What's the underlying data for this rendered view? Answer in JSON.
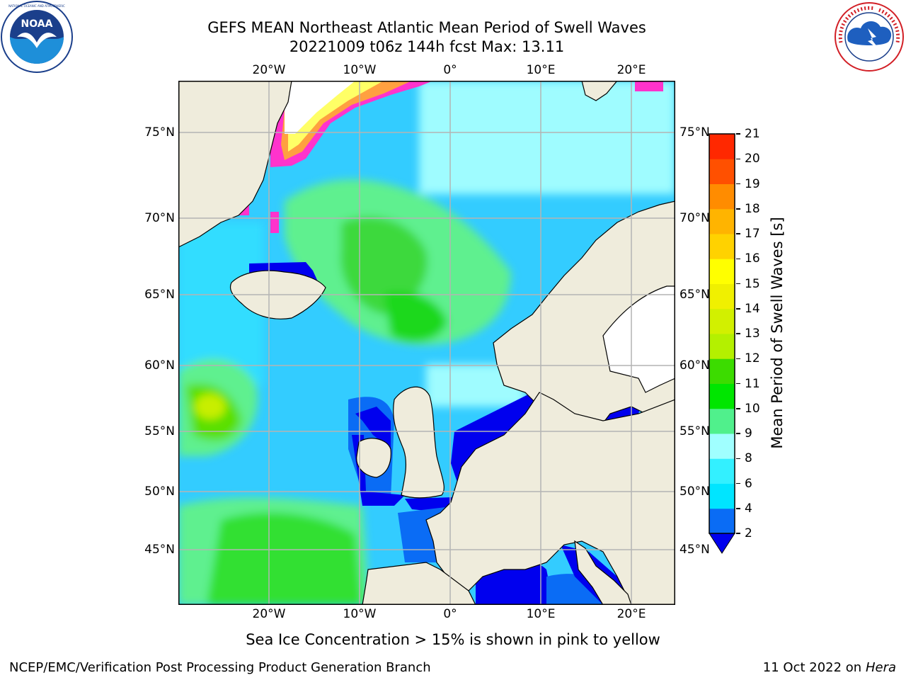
{
  "header": {
    "title_line1": "GEFS MEAN Northeast Atlantic Mean Period of Swell Waves",
    "title_line2": "20221009 t06z 144h fcst   Max: 13.11"
  },
  "logos": {
    "left": {
      "name": "noaa-logo",
      "text": "NOAA",
      "ring_text": "NATIONAL OCEANIC AND ATMOSPHERIC ADMINISTRATION · U.S. DEPARTMENT OF COMMERCE"
    },
    "right": {
      "name": "nws-logo",
      "ring_text": "NATIONAL WEATHER SERVICE"
    }
  },
  "map": {
    "projection": "mercator",
    "lon_range": [
      -30,
      25
    ],
    "lat_range": [
      41,
      78
    ],
    "lon_labels": [
      "20°W",
      "10°W",
      "0°",
      "10°E",
      "20°E"
    ],
    "lat_labels": [
      "75°N",
      "70°N",
      "65°N",
      "60°N",
      "55°N",
      "50°N",
      "45°N"
    ],
    "gridlines": true,
    "colors": {
      "ocean_base": "#33ccff",
      "land": "#efecdc",
      "grid": "#b4b4b4",
      "coast": "#000000"
    }
  },
  "colorbar": {
    "label": "Mean Period of Swell Waves [s]",
    "ticks": [
      "2",
      "4",
      "6",
      "8",
      "9",
      "10",
      "11",
      "12",
      "13",
      "14",
      "15",
      "16",
      "17",
      "18",
      "19",
      "20",
      "21"
    ],
    "colors": [
      "#0a6cf5",
      "#00e5ff",
      "#33f0ff",
      "#a0ffff",
      "#50f08c",
      "#00e600",
      "#3cdc00",
      "#b4f000",
      "#d2f000",
      "#f0f000",
      "#ffff00",
      "#ffd200",
      "#ffb400",
      "#ff8c00",
      "#ff5000",
      "#ff2800",
      "#ff0000"
    ],
    "extend_min_color": "#0000ee"
  },
  "subtitle": "Sea Ice Concentration > 15% is shown in pink to yellow",
  "footer": {
    "left": "NCEP/EMC/Verification Post Processing Product Generation Branch",
    "right_date": "11 Oct 2022 on",
    "right_host": "Hera"
  }
}
